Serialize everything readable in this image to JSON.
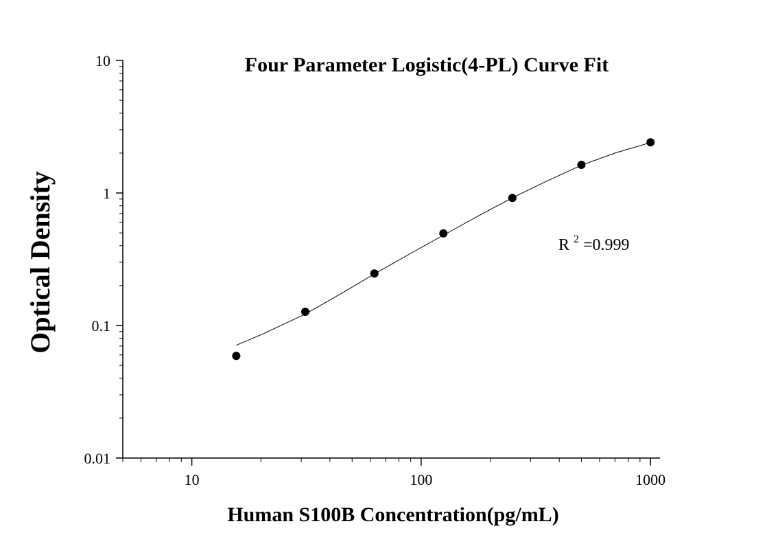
{
  "chart_data": {
    "type": "scatter",
    "title": "Four Parameter Logistic(4-PL) Curve Fit",
    "xlabel": "Human S100B Concentration(pg/mL)",
    "ylabel": "Optical Density",
    "x_scale": "log",
    "y_scale": "log",
    "xlim": [
      5,
      1100
    ],
    "ylim": [
      0.01,
      10
    ],
    "x_ticks": [
      "10",
      "100",
      "1000"
    ],
    "y_ticks": [
      "0.01",
      "0.1",
      "1",
      "10"
    ],
    "grid": false,
    "annotation": {
      "base": "R",
      "superscript": "2",
      "text": "=0.999"
    },
    "series": [
      {
        "kind": "points",
        "x": [
          15.625,
          31.25,
          62.5,
          125,
          250,
          500,
          1000
        ],
        "y": [
          0.059,
          0.127,
          0.247,
          0.495,
          0.918,
          1.63,
          2.41
        ]
      },
      {
        "kind": "fit_curve",
        "x": [
          15.625,
          20,
          31.25,
          45,
          62.5,
          90,
          125,
          180,
          250,
          350,
          500,
          700,
          1000
        ],
        "y": [
          0.071,
          0.085,
          0.122,
          0.175,
          0.245,
          0.35,
          0.48,
          0.68,
          0.92,
          1.22,
          1.62,
          2.0,
          2.4
        ]
      }
    ]
  }
}
